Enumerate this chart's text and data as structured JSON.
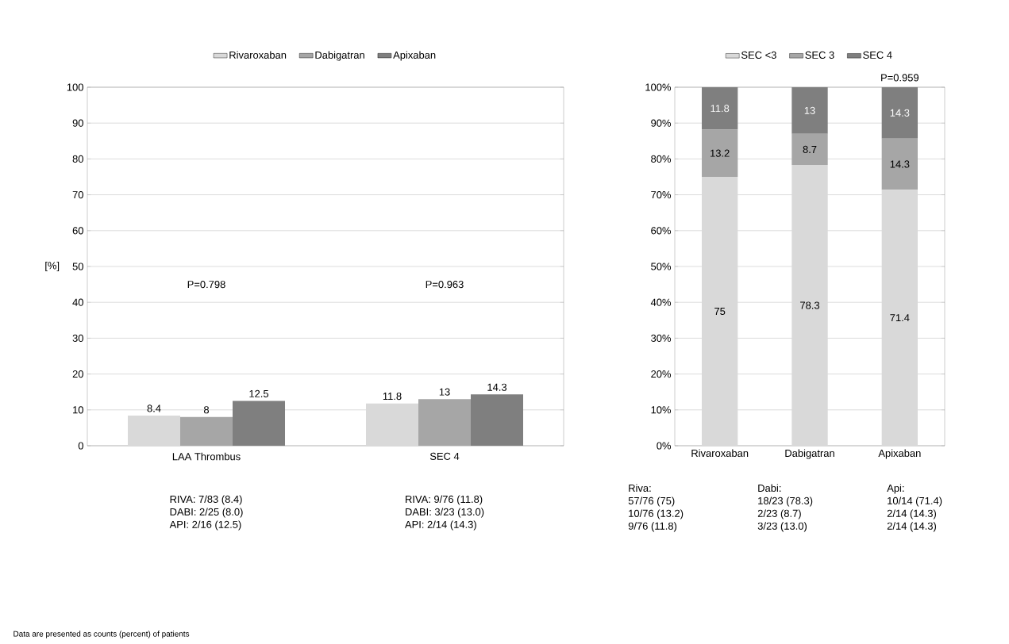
{
  "chart_data": [
    {
      "type": "bar",
      "categories": [
        "LAA Thrombus",
        "SEC 4"
      ],
      "ylabel": "[%]",
      "series": [
        {
          "name": "Rivaroxaban",
          "color": "#d9d9d9",
          "values": [
            8.4,
            11.8
          ]
        },
        {
          "name": "Dabigatran",
          "color": "#a6a6a6",
          "values": [
            8,
            13
          ]
        },
        {
          "name": "Apixaban",
          "color": "#7f7f7f",
          "values": [
            12.5,
            14.3
          ]
        }
      ],
      "ylim": [
        0,
        100
      ],
      "yticks": [
        0,
        10,
        20,
        30,
        40,
        50,
        60,
        70,
        80,
        90,
        100
      ],
      "grid": "y",
      "legend": "top",
      "data_labels": true,
      "annotations": [
        "P=0.798",
        "P=0.963",
        "RIVA: 7/83 (8.4)",
        "DABI: 2/25 (8.0)",
        "API: 2/16 (12.5)",
        "RIVA: 9/76 (11.8)",
        "DABI: 3/23 (13.0)",
        "API: 2/14 (14.3)",
        "Data are presented as counts (percent) of patients"
      ]
    },
    {
      "type": "bar",
      "stacked": true,
      "categories": [
        "Rivaroxaban",
        "Dabigatran",
        "Apixaban"
      ],
      "series": [
        {
          "name": "SEC <3",
          "color": "#d9d9d9",
          "values": [
            75,
            78.3,
            71.4
          ]
        },
        {
          "name": "SEC 3",
          "color": "#a6a6a6",
          "values": [
            13.2,
            8.7,
            14.3
          ]
        },
        {
          "name": "SEC 4",
          "color": "#7f7f7f",
          "values": [
            11.8,
            13,
            14.3
          ]
        }
      ],
      "ylim": [
        0,
        100
      ],
      "yticks": [
        {
          "value": 0,
          "label": "0%"
        },
        {
          "value": 10,
          "label": "10%"
        },
        {
          "value": 20,
          "label": "20%"
        },
        {
          "value": 30,
          "label": "30%"
        },
        {
          "value": 40,
          "label": "40%"
        },
        {
          "value": 50,
          "label": "50%"
        },
        {
          "value": 60,
          "label": "60%"
        },
        {
          "value": 70,
          "label": "70%"
        },
        {
          "value": 80,
          "label": "80%"
        },
        {
          "value": 90,
          "label": "90%"
        },
        {
          "value": 100,
          "label": "100%"
        }
      ],
      "grid": "y",
      "legend": "top",
      "data_labels": true,
      "annotations": [
        "P=0.959",
        "Riva:",
        "57/76 (75)",
        "10/76 (13.2)",
        "9/76 (11.8)",
        "Dabi:",
        "18/23 (78.3)",
        "2/23 (8.7)",
        "3/23 (13.0)",
        "Api:",
        "10/14 (71.4)",
        "2/14 (14.3)",
        "2/14 (14.3)"
      ]
    }
  ]
}
